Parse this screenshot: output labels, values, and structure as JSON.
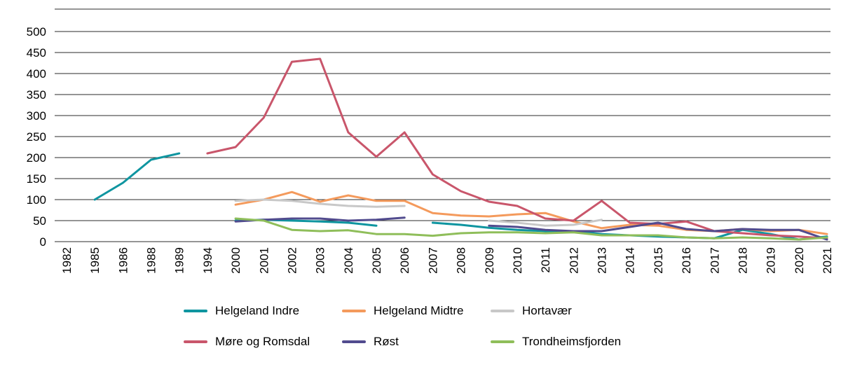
{
  "figure": {
    "background": "#ffffff",
    "text_color": "#000000",
    "grid_color": "#2b2b2b"
  },
  "chart_data": {
    "type": "line",
    "title": "",
    "xlabel": "",
    "ylabel": "",
    "grid": "horizontal",
    "legend_position": "bottom",
    "legend_columns": 3,
    "ylim": [
      0,
      500
    ],
    "y_ticks": [
      0,
      50,
      100,
      150,
      200,
      250,
      300,
      350,
      400,
      450,
      500
    ],
    "x_categories": [
      "1982",
      "1985",
      "1986",
      "1988",
      "1989",
      "1994",
      "2000",
      "2001",
      "2002",
      "2003",
      "2004",
      "2005",
      "2006",
      "2007",
      "2008",
      "2009",
      "2010",
      "2011",
      "2012",
      "2013",
      "2014",
      "2015",
      "2016",
      "2017",
      "2018",
      "2019",
      "2020",
      "2021"
    ],
    "series": [
      {
        "name": "Helgeland Indre",
        "color": "#0f95a0",
        "values": [
          null,
          100,
          140,
          195,
          210,
          null,
          50,
          52,
          50,
          48,
          45,
          38,
          null,
          45,
          40,
          33,
          28,
          25,
          25,
          18,
          15,
          12,
          10,
          8,
          28,
          18,
          5,
          12
        ]
      },
      {
        "name": "Helgeland Midtre",
        "color": "#f49a5c",
        "values": [
          null,
          null,
          null,
          null,
          null,
          null,
          88,
          100,
          118,
          95,
          110,
          97,
          97,
          68,
          62,
          60,
          65,
          68,
          48,
          32,
          40,
          38,
          28,
          25,
          30,
          25,
          28,
          18
        ]
      },
      {
        "name": "Hortavær",
        "color": "#c8c8c8",
        "values": [
          null,
          null,
          null,
          null,
          null,
          null,
          97,
          100,
          97,
          90,
          85,
          83,
          85,
          null,
          null,
          50,
          45,
          38,
          40,
          52,
          null,
          null,
          null,
          null,
          null,
          null,
          null,
          null
        ]
      },
      {
        "name": "Møre og Romsdal",
        "color": "#c9566b",
        "values": [
          null,
          null,
          null,
          null,
          null,
          210,
          225,
          295,
          428,
          435,
          260,
          202,
          260,
          160,
          120,
          95,
          85,
          55,
          50,
          97,
          45,
          42,
          48,
          25,
          20,
          15,
          12,
          8
        ]
      },
      {
        "name": "Røst",
        "color": "#514b8e",
        "values": [
          null,
          null,
          null,
          null,
          null,
          null,
          48,
          52,
          55,
          55,
          50,
          52,
          57,
          null,
          null,
          38,
          35,
          28,
          25,
          25,
          35,
          45,
          30,
          25,
          30,
          28,
          28,
          5
        ]
      },
      {
        "name": "Trondheimsfjorden",
        "color": "#8fbe5a",
        "values": [
          null,
          null,
          null,
          null,
          null,
          null,
          55,
          50,
          28,
          25,
          27,
          18,
          18,
          14,
          20,
          22,
          22,
          20,
          22,
          15,
          15,
          15,
          10,
          8,
          10,
          8,
          5,
          10
        ]
      }
    ]
  }
}
